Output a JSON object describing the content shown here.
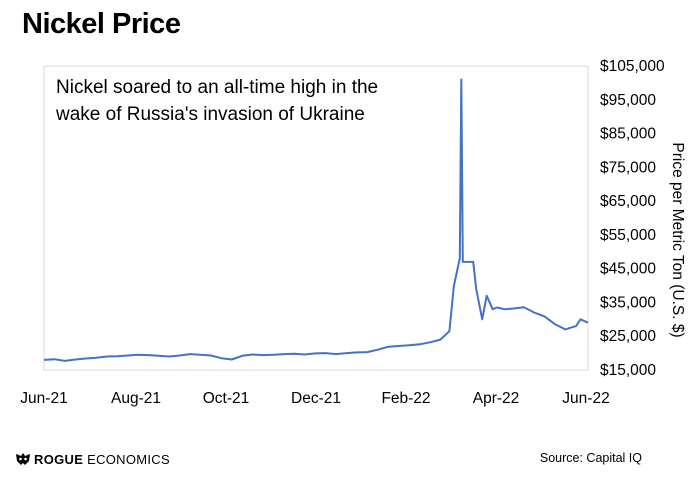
{
  "title": "Nickel Price",
  "source": "Source: Capital IQ",
  "logo": {
    "brand": "ROGUE",
    "suffix": "ECONOMICS"
  },
  "chart_data": {
    "type": "line",
    "title": "Nickel Price",
    "annotation": [
      "Nickel soared to an all-time high in the",
      "wake of Russia's invasion of Ukraine"
    ],
    "xlabel": "",
    "ylabel": "Price per Metric Ton (U.S. $)",
    "x_ticks": [
      "Jun-21",
      "Aug-21",
      "Oct-21",
      "Dec-21",
      "Feb-22",
      "Apr-22",
      "Jun-22"
    ],
    "y_ticks": [
      "$15,000",
      "$25,000",
      "$35,000",
      "$45,000",
      "$55,000",
      "$65,000",
      "$75,000",
      "$85,000",
      "$95,000",
      "$105,000"
    ],
    "ylim": [
      15000,
      105000
    ],
    "xlim": [
      "2021-06-01",
      "2022-06-01"
    ],
    "y_axis_position": "right",
    "grid": false,
    "color": "#4472C4",
    "series": [
      {
        "x": [
          "2021-06-01",
          "2021-06-08",
          "2021-06-15",
          "2021-06-22",
          "2021-06-29",
          "2021-07-06",
          "2021-07-13",
          "2021-07-20",
          "2021-07-27",
          "2021-08-03",
          "2021-08-10",
          "2021-08-17",
          "2021-08-24",
          "2021-08-31",
          "2021-09-07",
          "2021-09-14",
          "2021-09-21",
          "2021-09-28",
          "2021-10-05",
          "2021-10-12",
          "2021-10-19",
          "2021-10-26",
          "2021-11-02",
          "2021-11-09",
          "2021-11-16",
          "2021-11-23",
          "2021-11-30",
          "2021-12-07",
          "2021-12-14",
          "2021-12-21",
          "2021-12-28",
          "2022-01-04",
          "2022-01-11",
          "2022-01-18",
          "2022-01-25",
          "2022-02-01",
          "2022-02-08",
          "2022-02-15",
          "2022-02-22",
          "2022-02-28",
          "2022-03-03",
          "2022-03-07",
          "2022-03-08",
          "2022-03-09",
          "2022-03-16",
          "2022-03-18",
          "2022-03-22",
          "2022-03-25",
          "2022-03-29",
          "2022-04-01",
          "2022-04-06",
          "2022-04-12",
          "2022-04-19",
          "2022-04-26",
          "2022-05-03",
          "2022-05-10",
          "2022-05-17",
          "2022-05-20",
          "2022-05-24",
          "2022-05-27",
          "2022-06-01"
        ],
        "y": [
          18000,
          18200,
          17700,
          18100,
          18400,
          18600,
          19000,
          19100,
          19300,
          19500,
          19400,
          19200,
          19000,
          19300,
          19700,
          19500,
          19300,
          18500,
          18100,
          19200,
          19600,
          19400,
          19500,
          19700,
          19800,
          19600,
          19900,
          20000,
          19700,
          20000,
          20200,
          20300,
          21000,
          21900,
          22100,
          22300,
          22600,
          23200,
          24000,
          26500,
          40000,
          48000,
          101000,
          47000,
          47000,
          39000,
          30000,
          37000,
          33000,
          33500,
          33000,
          33200,
          33600,
          32000,
          30800,
          28500,
          27000,
          27500,
          28000,
          30000,
          29000
        ]
      }
    ]
  }
}
